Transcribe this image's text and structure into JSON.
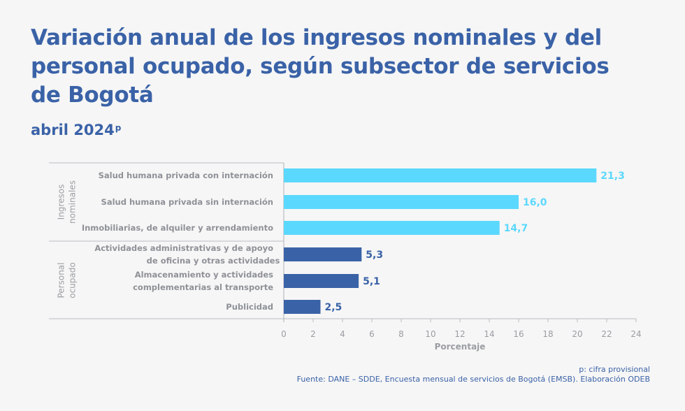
{
  "header": {
    "title": "Variación anual de los ingresos nominales y del personal ocupado, según subsector de servicios de Bogotá",
    "period": "abril 2024",
    "period_mark": "p"
  },
  "footer": {
    "note": "p: cifra provisional",
    "source": "Fuente: DANE – SDDE, Encuesta mensual de servicios de Bogotá (EMSB). Elaboración ODEB"
  },
  "colors": {
    "ingresos": "#5bd8fe",
    "personal": "#3a62a7",
    "title": "#3a62a7",
    "axis_text": "#9a9da2"
  },
  "chart_data": {
    "type": "bar",
    "orientation": "horizontal",
    "title": "Variación anual de los ingresos nominales y del personal ocupado, según subsector de servicios de Bogotá",
    "subtitle": "abril 2024p",
    "xlabel": "Porcentaje",
    "ylabel": "",
    "xlim": [
      0,
      24
    ],
    "xticks": [
      0,
      2,
      4,
      6,
      8,
      10,
      12,
      14,
      16,
      18,
      20,
      22,
      24
    ],
    "grid": false,
    "groups": [
      {
        "name": "Ingresos nominales",
        "name_lines": [
          "Ingresos",
          "nominales"
        ],
        "color": "#5bd8fe",
        "categories": [
          {
            "label": [
              "Salud humana privada con internación"
            ],
            "value": 21.3,
            "value_label": "21,3"
          },
          {
            "label": [
              "Salud humana privada sin internación"
            ],
            "value": 16.0,
            "value_label": "16,0"
          },
          {
            "label": [
              "Inmobiliarias,  de alquiler y arrendamiento"
            ],
            "value": 14.7,
            "value_label": "14,7"
          }
        ]
      },
      {
        "name": "Personal ocupado",
        "name_lines": [
          "Personal",
          "ocupado"
        ],
        "color": "#3a62a7",
        "categories": [
          {
            "label": [
              "Actividades administrativas y de apoyo",
              "de oficina y otras actividades"
            ],
            "value": 5.3,
            "value_label": "5,3"
          },
          {
            "label": [
              "Almacenamiento y actividades",
              "complementarias al transporte"
            ],
            "value": 5.1,
            "value_label": "5,1"
          },
          {
            "label": [
              "Publicidad"
            ],
            "value": 2.5,
            "value_label": "2,5"
          }
        ]
      }
    ]
  }
}
